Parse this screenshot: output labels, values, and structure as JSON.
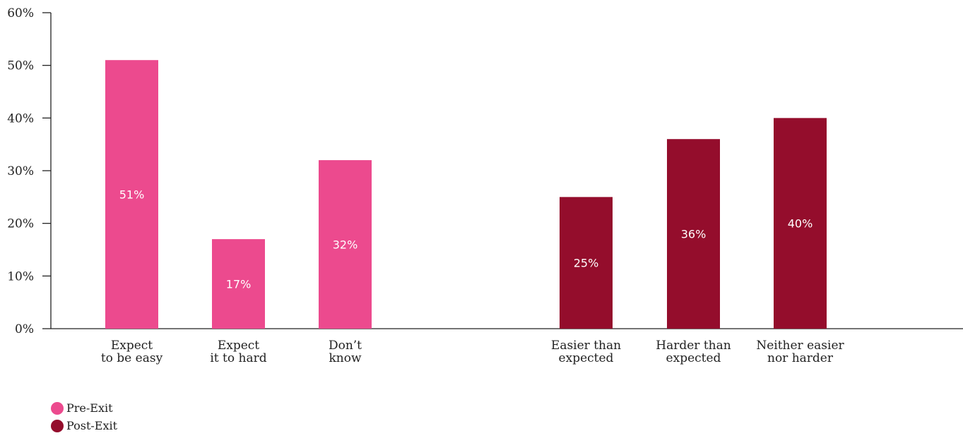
{
  "chart_data": {
    "type": "bar",
    "ylim": [
      0,
      60
    ],
    "y_ticks": [
      0,
      10,
      20,
      30,
      40,
      50,
      60
    ],
    "y_tick_format": "{v}%",
    "grid": false,
    "legend_position": "bottom-left",
    "series": [
      {
        "name": "Pre-Exit",
        "color": "#EC4A8E",
        "categories": [
          [
            "Expect",
            "to be easy"
          ],
          [
            "Expect",
            "it to hard"
          ],
          [
            "Don’t",
            "know"
          ]
        ],
        "values": [
          51,
          17,
          32
        ],
        "labels": [
          "51%",
          "17%",
          "32%"
        ]
      },
      {
        "name": "Post-Exit",
        "color": "#940D2C",
        "categories": [
          [
            "Easier than",
            "expected"
          ],
          [
            "Harder than",
            "expected"
          ],
          [
            "Neither easier",
            "nor harder"
          ]
        ],
        "values": [
          25,
          36,
          40
        ],
        "labels": [
          "25%",
          "36%",
          "40%"
        ]
      }
    ]
  }
}
